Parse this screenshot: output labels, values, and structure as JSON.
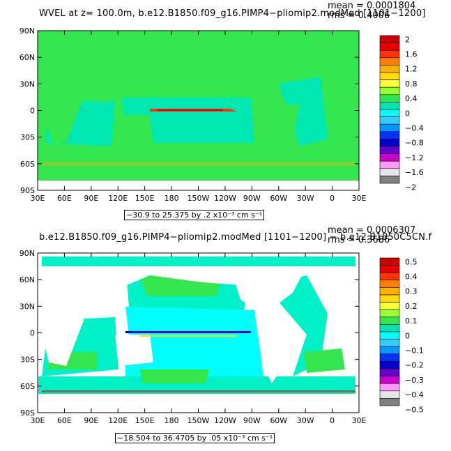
{
  "panels": [
    {
      "title": "WVEL at z= 100.0m, b.e12.B1850.f09_g16.PIMP4−pliomip2.modMed [1101−1200]",
      "mean_label": "mean = 0.0001804",
      "rms_label": "rms = 0.4006",
      "range_label": "−30.9 to 25.375 by .2 x10⁻³ cm s⁻¹",
      "lat_ticks": [
        "90N",
        "60N",
        "30N",
        "0",
        "30S",
        "60S",
        "90S"
      ],
      "lon_ticks": [
        "30E",
        "60E",
        "90E",
        "120E",
        "150E",
        "180",
        "150W",
        "120W",
        "90W",
        "60W",
        "30W",
        "0",
        "30E"
      ],
      "colorbar": {
        "labels": [
          "2",
          "1.6",
          "1.2",
          "0.8",
          "0.4",
          "0",
          "−0.4",
          "−0.8",
          "−1.2",
          "−1.6",
          "−2"
        ],
        "colors": [
          "#cc0000",
          "#e60000",
          "#ff3300",
          "#ff7f00",
          "#ffb000",
          "#ffdd00",
          "#ffff33",
          "#99ff33",
          "#33e64d",
          "#00e6b3",
          "#00ffff",
          "#33ccff",
          "#0099ff",
          "#0033ff",
          "#0000cc",
          "#6600cc",
          "#cc00cc",
          "#ff99ff",
          "#e6e6e6",
          "#808080"
        ]
      },
      "base_color": "#33e64d"
    },
    {
      "title": "b.e12.B1850.f09_g16.PIMP4−pliomip2.modMed [1101−1200] − b.e12.B1850C5CN.f",
      "mean_label": "mean = 0.0006307",
      "rms_label": "rms = 0.3686",
      "range_label": "−18.504 to 36.4705 by .05 x10⁻³ cm s⁻¹",
      "lat_ticks": [
        "90N",
        "60N",
        "30N",
        "0",
        "30S",
        "60S",
        "90S"
      ],
      "lon_ticks": [
        "30E",
        "60E",
        "90E",
        "120E",
        "150E",
        "180",
        "150W",
        "120W",
        "90W",
        "60W",
        "30W",
        "0",
        "30E"
      ],
      "colorbar": {
        "labels": [
          "0.5",
          "0.4",
          "0.3",
          "0.2",
          "0.1",
          "0",
          "−0.1",
          "−0.2",
          "−0.3",
          "−0.4",
          "−0.5"
        ],
        "colors": [
          "#cc0000",
          "#e60000",
          "#ff3300",
          "#ff7f00",
          "#ffb000",
          "#ffdd00",
          "#ffff33",
          "#99ff33",
          "#33e64d",
          "#00e6b3",
          "#00ffff",
          "#33ccff",
          "#0099ff",
          "#0033ff",
          "#0000cc",
          "#6600cc",
          "#cc00cc",
          "#ff99ff",
          "#e6e6e6",
          "#808080"
        ]
      },
      "base_color": "#00f0c8"
    }
  ]
}
